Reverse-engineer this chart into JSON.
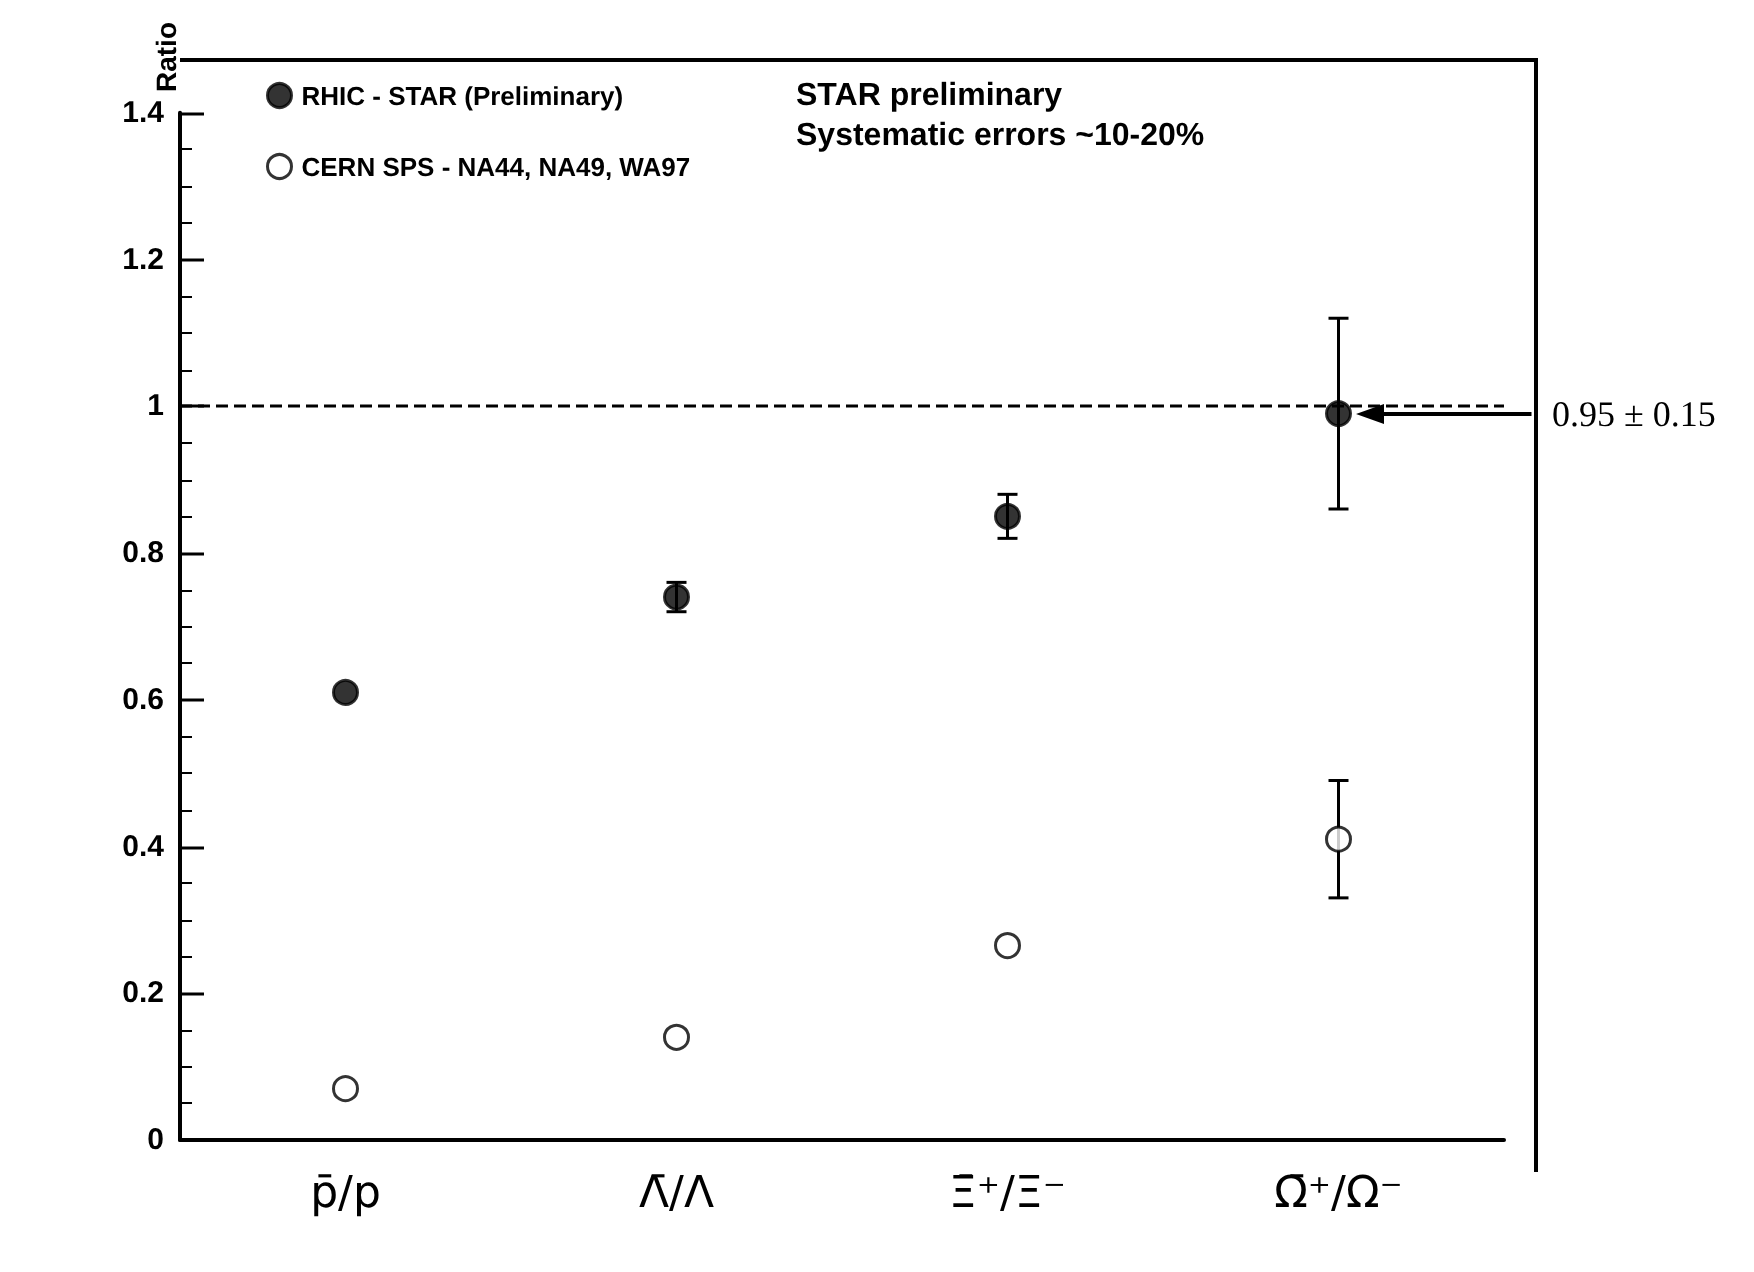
{
  "chart_data": {
    "type": "scatter",
    "ylabel": "Ratio",
    "categories": [
      "p̄/p",
      "Λ̄/Λ",
      "Ξ̄⁺/Ξ⁻",
      "Ω̄⁺/Ω⁻"
    ],
    "series": [
      {
        "name": "RHIC - STAR (Preliminary)",
        "color": "#000000",
        "values": [
          0.61,
          0.74,
          0.85,
          0.99
        ],
        "errors": [
          null,
          0.02,
          0.03,
          0.13
        ]
      },
      {
        "name": "CERN SPS - NA44, NA49, WA97",
        "color": "#ffffff",
        "values": [
          0.07,
          0.14,
          0.265,
          0.41
        ],
        "errors": [
          null,
          null,
          null,
          0.08
        ]
      }
    ],
    "ylim": [
      0,
      1.4
    ],
    "yticks": [
      {
        "value": 0,
        "label": "0"
      },
      0.2,
      0.4,
      0.6,
      0.8,
      {
        "value": 1,
        "label": "1"
      },
      1.2,
      1.4
    ],
    "ref_lines": [
      {
        "axis": "y",
        "value": 1,
        "line_style": "dashed",
        "color": "#000000"
      }
    ],
    "annotations": [
      "STAR preliminary\nSystematic errors ~10-20%",
      "0.95 ± 0.15"
    ],
    "legend": "top left",
    "marker": "circle",
    "grid": false
  }
}
